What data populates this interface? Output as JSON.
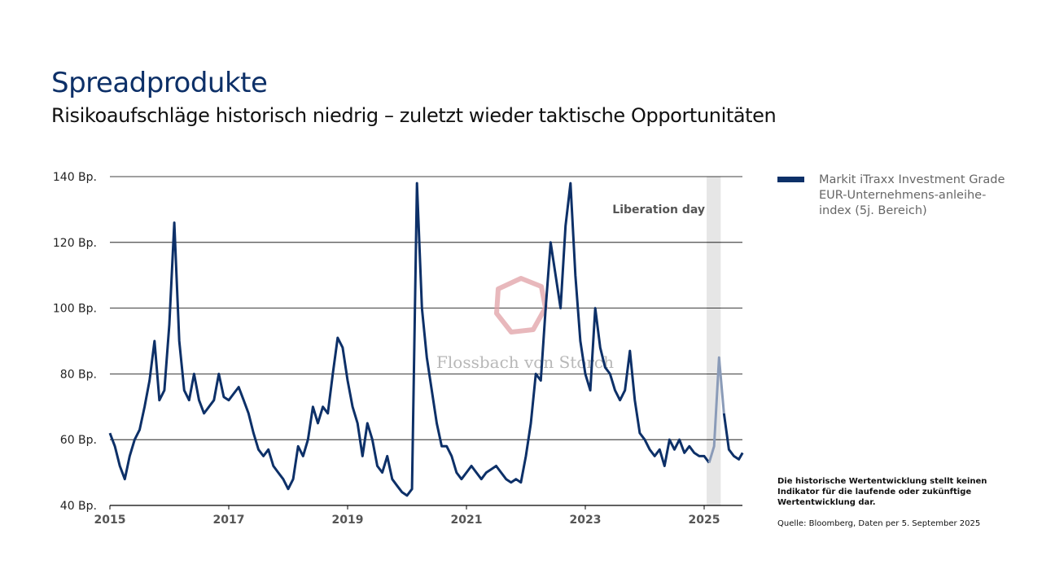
{
  "header": {
    "title": "Spreadprodukte",
    "subtitle": "Risikoaufschläge historisch niedrig – zuletzt wieder taktische Opportunitäten"
  },
  "watermark": {
    "text": "Flossbach von Storch"
  },
  "legend": {
    "label": "Markit iTraxx Investment Grade EUR-Unternehmens-anleihe-index (5j. Bereich)"
  },
  "footer": {
    "disclaimer": "Die historische Wertentwicklung stellt keinen Indikator für die laufende oder zukünftige Wertentwicklung dar.",
    "source": "Quelle: Bloomberg, Daten per 5. September 2025"
  },
  "colors": {
    "line": "#0d3068",
    "highlight_line": "#8a9bb8",
    "band": "#e6e6e6",
    "watermark": "#e0a0a5"
  },
  "chart_data": {
    "type": "line",
    "ylim": [
      40,
      140
    ],
    "yticks": [
      40,
      60,
      80,
      100,
      120,
      140
    ],
    "ytick_labels": [
      "40 Bp.",
      "60 Bp.",
      "80 Bp.",
      "100 Bp.",
      "120 Bp.",
      "140 Bp."
    ],
    "xlim": [
      "2015-01",
      "2025-09"
    ],
    "xtick_labels": [
      "2015",
      "2017",
      "2019",
      "2021",
      "2023",
      "2025"
    ],
    "grid": "horizontal",
    "legend_position": "right",
    "annotation": {
      "label": "Liberation day",
      "start": "2025-02",
      "end": "2025-05"
    },
    "series": [
      {
        "name": "Markit iTraxx Investment Grade EUR-Unternehmens-anleihe-index (5j. Bereich)",
        "x": [
          "2015-01",
          "2015-02",
          "2015-03",
          "2015-04",
          "2015-05",
          "2015-06",
          "2015-07",
          "2015-08",
          "2015-09",
          "2015-10",
          "2015-11",
          "2015-12",
          "2016-01",
          "2016-02",
          "2016-03",
          "2016-04",
          "2016-05",
          "2016-06",
          "2016-07",
          "2016-08",
          "2016-09",
          "2016-10",
          "2016-11",
          "2016-12",
          "2017-01",
          "2017-02",
          "2017-03",
          "2017-04",
          "2017-05",
          "2017-06",
          "2017-07",
          "2017-08",
          "2017-09",
          "2017-10",
          "2017-11",
          "2017-12",
          "2018-01",
          "2018-02",
          "2018-03",
          "2018-04",
          "2018-05",
          "2018-06",
          "2018-07",
          "2018-08",
          "2018-09",
          "2018-10",
          "2018-11",
          "2018-12",
          "2019-01",
          "2019-02",
          "2019-03",
          "2019-04",
          "2019-05",
          "2019-06",
          "2019-07",
          "2019-08",
          "2019-09",
          "2019-10",
          "2019-11",
          "2019-12",
          "2020-01",
          "2020-02",
          "2020-03",
          "2020-04",
          "2020-05",
          "2020-06",
          "2020-07",
          "2020-08",
          "2020-09",
          "2020-10",
          "2020-11",
          "2020-12",
          "2021-01",
          "2021-02",
          "2021-03",
          "2021-04",
          "2021-05",
          "2021-06",
          "2021-07",
          "2021-08",
          "2021-09",
          "2021-10",
          "2021-11",
          "2021-12",
          "2022-01",
          "2022-02",
          "2022-03",
          "2022-04",
          "2022-05",
          "2022-06",
          "2022-07",
          "2022-08",
          "2022-09",
          "2022-10",
          "2022-11",
          "2022-12",
          "2023-01",
          "2023-02",
          "2023-03",
          "2023-04",
          "2023-05",
          "2023-06",
          "2023-07",
          "2023-08",
          "2023-09",
          "2023-10",
          "2023-11",
          "2023-12",
          "2024-01",
          "2024-02",
          "2024-03",
          "2024-04",
          "2024-05",
          "2024-06",
          "2024-07",
          "2024-08",
          "2024-09",
          "2024-10",
          "2024-11",
          "2024-12",
          "2025-01",
          "2025-02",
          "2025-03",
          "2025-04",
          "2025-05",
          "2025-06",
          "2025-07",
          "2025-08",
          "2025-09"
        ],
        "y": [
          62,
          58,
          52,
          48,
          55,
          60,
          63,
          70,
          78,
          90,
          72,
          75,
          95,
          126,
          90,
          75,
          72,
          80,
          72,
          68,
          70,
          72,
          80,
          73,
          72,
          74,
          76,
          72,
          68,
          62,
          57,
          55,
          57,
          52,
          50,
          48,
          45,
          48,
          58,
          55,
          60,
          70,
          65,
          70,
          68,
          80,
          91,
          88,
          78,
          70,
          65,
          55,
          65,
          60,
          52,
          50,
          55,
          48,
          46,
          44,
          43,
          45,
          138,
          100,
          85,
          75,
          65,
          58,
          58,
          55,
          50,
          48,
          50,
          52,
          50,
          48,
          50,
          51,
          52,
          50,
          48,
          47,
          48,
          47,
          55,
          65,
          80,
          78,
          100,
          120,
          110,
          100,
          125,
          138,
          110,
          90,
          80,
          75,
          100,
          88,
          82,
          80,
          75,
          72,
          75,
          87,
          72,
          62,
          60,
          57,
          55,
          57,
          52,
          60,
          57,
          60,
          56,
          58,
          56,
          55,
          55,
          53,
          58,
          85,
          68,
          57,
          55,
          54,
          56
        ]
      }
    ]
  }
}
